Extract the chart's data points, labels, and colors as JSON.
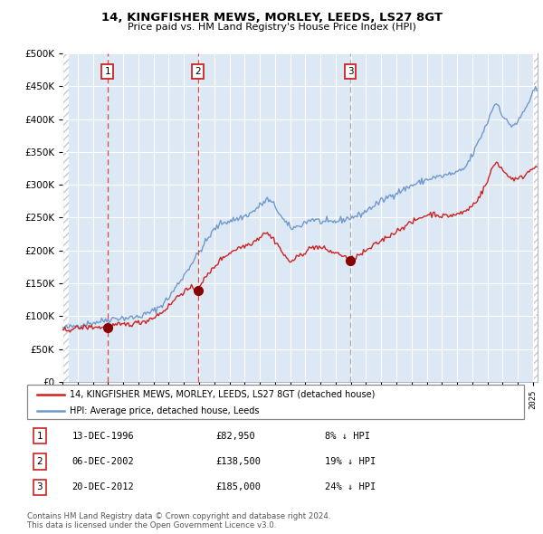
{
  "title1": "14, KINGFISHER MEWS, MORLEY, LEEDS, LS27 8GT",
  "title2": "Price paid vs. HM Land Registry's House Price Index (HPI)",
  "sale_prices": [
    82950,
    138500,
    185000
  ],
  "sale_years": [
    1996.96,
    2002.92,
    2012.96
  ],
  "sale_labels": [
    "1",
    "2",
    "3"
  ],
  "legend_line1": "14, KINGFISHER MEWS, MORLEY, LEEDS, LS27 8GT (detached house)",
  "legend_line2": "HPI: Average price, detached house, Leeds",
  "table_rows": [
    [
      "1",
      "13-DEC-1996",
      "£82,950",
      "8% ↓ HPI"
    ],
    [
      "2",
      "06-DEC-2002",
      "£138,500",
      "19% ↓ HPI"
    ],
    [
      "3",
      "20-DEC-2012",
      "£185,000",
      "24% ↓ HPI"
    ]
  ],
  "footer": "Contains HM Land Registry data © Crown copyright and database right 2024.\nThis data is licensed under the Open Government Licence v3.0.",
  "hpi_color": "#7099cc",
  "price_color": "#cc2222",
  "marker_color": "#880000",
  "vline_color_red": "#dd4444",
  "vline_color_gray": "#aaaaaa",
  "bg_color": "#dde8f5",
  "hatch_color": "#c8c8c8",
  "grid_color": "#ffffff",
  "ylim_max": 500000,
  "xlim_start": 1994.0,
  "xlim_end": 2025.3,
  "hpi_keypoints": [
    [
      1994.0,
      82000
    ],
    [
      1994.5,
      83000
    ],
    [
      1995.0,
      86000
    ],
    [
      1995.5,
      88000
    ],
    [
      1996.0,
      90000
    ],
    [
      1996.5,
      92000
    ],
    [
      1997.0,
      95000
    ],
    [
      1997.5,
      97000
    ],
    [
      1998.0,
      97000
    ],
    [
      1998.5,
      97500
    ],
    [
      1999.0,
      99000
    ],
    [
      1999.5,
      103000
    ],
    [
      2000.0,
      108000
    ],
    [
      2000.5,
      116000
    ],
    [
      2001.0,
      128000
    ],
    [
      2001.5,
      145000
    ],
    [
      2002.0,
      162000
    ],
    [
      2002.5,
      180000
    ],
    [
      2003.0,
      197000
    ],
    [
      2003.5,
      215000
    ],
    [
      2004.0,
      232000
    ],
    [
      2004.5,
      242000
    ],
    [
      2005.0,
      245000
    ],
    [
      2005.5,
      248000
    ],
    [
      2006.0,
      252000
    ],
    [
      2006.5,
      258000
    ],
    [
      2007.0,
      268000
    ],
    [
      2007.5,
      278000
    ],
    [
      2008.0,
      268000
    ],
    [
      2008.5,
      248000
    ],
    [
      2009.0,
      234000
    ],
    [
      2009.5,
      236000
    ],
    [
      2010.0,
      243000
    ],
    [
      2010.5,
      248000
    ],
    [
      2011.0,
      244000
    ],
    [
      2011.5,
      242000
    ],
    [
      2012.0,
      244000
    ],
    [
      2012.5,
      247000
    ],
    [
      2013.0,
      250000
    ],
    [
      2013.5,
      253000
    ],
    [
      2014.0,
      260000
    ],
    [
      2014.5,
      268000
    ],
    [
      2015.0,
      275000
    ],
    [
      2015.5,
      282000
    ],
    [
      2016.0,
      288000
    ],
    [
      2016.5,
      293000
    ],
    [
      2017.0,
      299000
    ],
    [
      2017.5,
      303000
    ],
    [
      2018.0,
      308000
    ],
    [
      2018.5,
      311000
    ],
    [
      2019.0,
      313000
    ],
    [
      2019.5,
      316000
    ],
    [
      2020.0,
      318000
    ],
    [
      2020.5,
      325000
    ],
    [
      2021.0,
      345000
    ],
    [
      2021.5,
      370000
    ],
    [
      2022.0,
      395000
    ],
    [
      2022.3,
      415000
    ],
    [
      2022.6,
      425000
    ],
    [
      2022.8,
      418000
    ],
    [
      2023.0,
      405000
    ],
    [
      2023.3,
      395000
    ],
    [
      2023.6,
      390000
    ],
    [
      2024.0,
      395000
    ],
    [
      2024.3,
      408000
    ],
    [
      2024.6,
      420000
    ],
    [
      2024.8,
      430000
    ],
    [
      2025.0,
      440000
    ],
    [
      2025.2,
      445000
    ]
  ],
  "price_keypoints": [
    [
      1994.0,
      78000
    ],
    [
      1994.5,
      80000
    ],
    [
      1995.0,
      82000
    ],
    [
      1995.5,
      83000
    ],
    [
      1996.0,
      83500
    ],
    [
      1996.5,
      83000
    ],
    [
      1996.96,
      82950
    ],
    [
      1997.0,
      84000
    ],
    [
      1997.5,
      86000
    ],
    [
      1998.0,
      87000
    ],
    [
      1998.5,
      88000
    ],
    [
      1999.0,
      90000
    ],
    [
      1999.5,
      93000
    ],
    [
      2000.0,
      98000
    ],
    [
      2000.5,
      105000
    ],
    [
      2001.0,
      115000
    ],
    [
      2001.5,
      128000
    ],
    [
      2002.0,
      138000
    ],
    [
      2002.5,
      142000
    ],
    [
      2002.92,
      138500
    ],
    [
      2003.0,
      147000
    ],
    [
      2003.5,
      160000
    ],
    [
      2004.0,
      175000
    ],
    [
      2004.5,
      188000
    ],
    [
      2005.0,
      196000
    ],
    [
      2005.5,
      203000
    ],
    [
      2006.0,
      207000
    ],
    [
      2006.5,
      212000
    ],
    [
      2007.0,
      220000
    ],
    [
      2007.3,
      228000
    ],
    [
      2007.6,
      224000
    ],
    [
      2008.0,
      215000
    ],
    [
      2008.3,
      205000
    ],
    [
      2008.6,
      192000
    ],
    [
      2009.0,
      183000
    ],
    [
      2009.3,
      186000
    ],
    [
      2009.6,
      192000
    ],
    [
      2010.0,
      198000
    ],
    [
      2010.3,
      203000
    ],
    [
      2010.6,
      206000
    ],
    [
      2011.0,
      204000
    ],
    [
      2011.3,
      202000
    ],
    [
      2011.6,
      199000
    ],
    [
      2012.0,
      196000
    ],
    [
      2012.3,
      194000
    ],
    [
      2012.6,
      191000
    ],
    [
      2012.96,
      185000
    ],
    [
      2013.0,
      187000
    ],
    [
      2013.5,
      192000
    ],
    [
      2014.0,
      199000
    ],
    [
      2014.5,
      207000
    ],
    [
      2015.0,
      215000
    ],
    [
      2015.5,
      222000
    ],
    [
      2016.0,
      229000
    ],
    [
      2016.5,
      237000
    ],
    [
      2017.0,
      242000
    ],
    [
      2017.5,
      249000
    ],
    [
      2018.0,
      254000
    ],
    [
      2018.5,
      256000
    ],
    [
      2019.0,
      252000
    ],
    [
      2019.5,
      253000
    ],
    [
      2020.0,
      255000
    ],
    [
      2020.5,
      259000
    ],
    [
      2021.0,
      268000
    ],
    [
      2021.5,
      283000
    ],
    [
      2022.0,
      305000
    ],
    [
      2022.3,
      325000
    ],
    [
      2022.6,
      335000
    ],
    [
      2022.8,
      330000
    ],
    [
      2023.0,
      322000
    ],
    [
      2023.3,
      315000
    ],
    [
      2023.6,
      310000
    ],
    [
      2024.0,
      308000
    ],
    [
      2024.3,
      312000
    ],
    [
      2024.6,
      318000
    ],
    [
      2024.8,
      322000
    ],
    [
      2025.0,
      326000
    ],
    [
      2025.2,
      330000
    ]
  ]
}
